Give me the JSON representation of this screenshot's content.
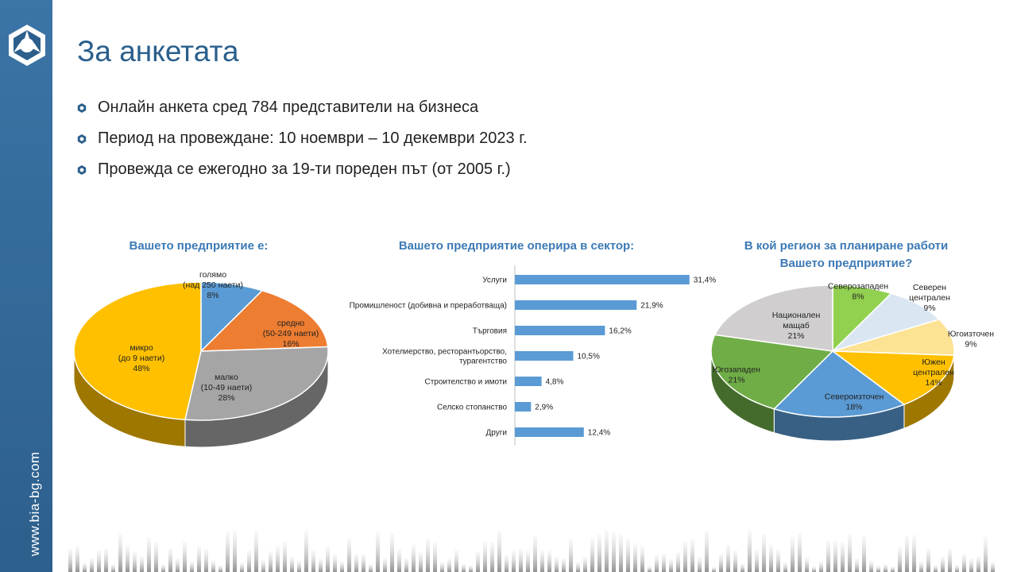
{
  "slide": {
    "title": "За анкетата",
    "website": "www.bia-bg.com",
    "bullets": [
      "Онлайн анкета сред 784 представители на бизнеса",
      "Период на провеждане: 10 ноември – 10 декември 2023 г.",
      "Провежда се ежегодно за 19-ти пореден път (от 2005 г.)"
    ]
  },
  "colors": {
    "sidebar": "#2d5f8c",
    "title": "#2a5f8c",
    "chart_title": "#3d7ab5",
    "bar": "#5b9bd5"
  },
  "chart_data": [
    {
      "type": "pie",
      "title": "Вашето предприятие е:",
      "slices": [
        {
          "label": [
            "голямо",
            "(над 250 наети)",
            "8%"
          ],
          "value": 8,
          "color": "#5b9bd5"
        },
        {
          "label": [
            "средно",
            "(50-249 наети)",
            "16%"
          ],
          "value": 16,
          "color": "#ed7d31"
        },
        {
          "label": [
            "малко",
            "(10-49 наети)",
            "28%"
          ],
          "value": 28,
          "color": "#a5a5a5"
        },
        {
          "label": [
            "микро",
            "(до 9 наети)",
            "48%"
          ],
          "value": 48,
          "color": "#ffc000"
        }
      ]
    },
    {
      "type": "bar",
      "orientation": "horizontal",
      "title": "Вашето предприятие оперира в сектор:",
      "categories": [
        [
          "Услуги"
        ],
        [
          "Промишленост (добивна и преработваща)"
        ],
        [
          "Търговия"
        ],
        [
          "Хотелиерство, ресторантьорство,",
          "турагентство"
        ],
        [
          "Строителство и имоти"
        ],
        [
          "Селско стопанство"
        ],
        [
          "Други"
        ]
      ],
      "values": [
        31.4,
        21.9,
        16.2,
        10.5,
        4.8,
        2.9,
        12.4
      ],
      "value_labels": [
        "31,4%",
        "21,9%",
        "16,2%",
        "10,5%",
        "4,8%",
        "2,9%",
        "12,4%"
      ],
      "color": "#5b9bd5"
    },
    {
      "type": "pie",
      "title": "В кой регион за планиране работи Вашето предприятие?",
      "title_lines": [
        "В кой регион за планиране работи",
        "Вашето предприятие?"
      ],
      "slices": [
        {
          "label": [
            "Северозападен",
            "8%"
          ],
          "value": 8,
          "color": "#92d050"
        },
        {
          "label": [
            "Северен",
            "централен",
            "9%"
          ],
          "value": 9,
          "color": "#dae6f2"
        },
        {
          "label": [
            "Югоизточен",
            "9%"
          ],
          "value": 9,
          "color": "#fce293"
        },
        {
          "label": [
            "Южен",
            "централен",
            "14%"
          ],
          "value": 14,
          "color": "#ffc000"
        },
        {
          "label": [
            "Североизточен",
            "18%"
          ],
          "value": 18,
          "color": "#5b9bd5"
        },
        {
          "label": [
            "Югозападен",
            "21%"
          ],
          "value": 21,
          "color": "#70ad47"
        },
        {
          "label": [
            "Национален",
            "мащаб",
            "21%"
          ],
          "value": 21,
          "color": "#d0cece"
        }
      ]
    }
  ]
}
